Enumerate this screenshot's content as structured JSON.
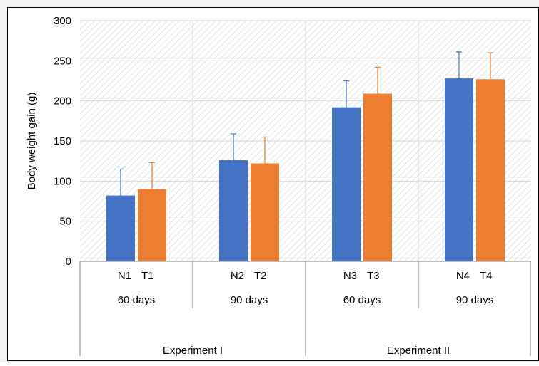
{
  "chart_data": {
    "type": "bar",
    "ylabel": "Body weight gain (g)",
    "xlabel": "",
    "ylim": [
      0,
      300
    ],
    "yticks": [
      0,
      50,
      100,
      150,
      200,
      250,
      300
    ],
    "grid": true,
    "legend": "none",
    "categories": [
      "N1 T1",
      "N2 T2",
      "N3 T3",
      "N4 T4"
    ],
    "category_levels": {
      "pairs": [
        {
          "n": "N1",
          "t": "T1"
        },
        {
          "n": "N2",
          "t": "T2"
        },
        {
          "n": "N3",
          "t": "T3"
        },
        {
          "n": "N4",
          "t": "T4"
        }
      ],
      "durations": [
        "60 days",
        "90 days",
        "60 days",
        "90 days"
      ],
      "experiments": [
        "Experiment I",
        "Experiment II"
      ]
    },
    "series": [
      {
        "values": [
          82,
          126,
          192,
          228
        ],
        "errors": [
          33,
          33,
          33,
          33
        ],
        "color": "#4472C4"
      },
      {
        "values": [
          90,
          122,
          209,
          227
        ],
        "errors": [
          33,
          33,
          33,
          33
        ],
        "color": "#ED7D31"
      }
    ]
  }
}
